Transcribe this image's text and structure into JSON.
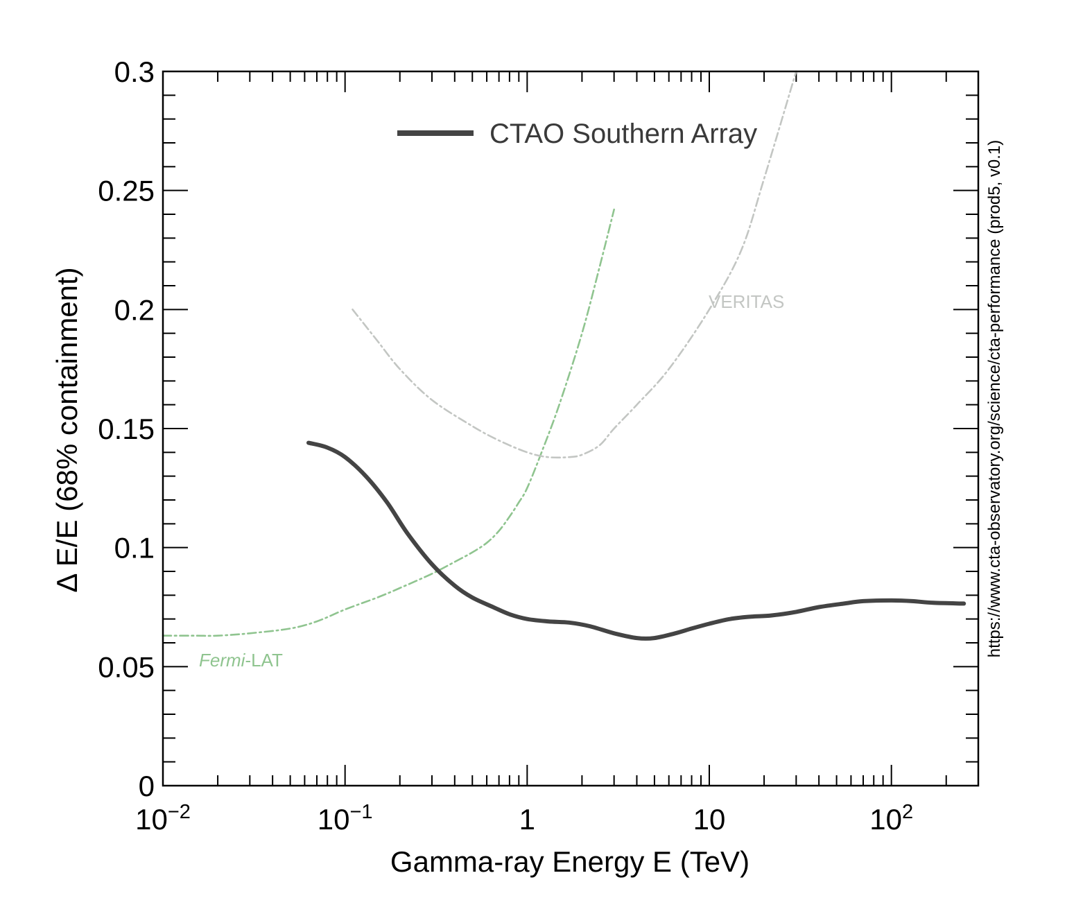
{
  "chart_data": {
    "type": "line",
    "xscale": "log",
    "xlim": [
      0.01,
      300
    ],
    "ylim": [
      0,
      0.3
    ],
    "xlabel": "Gamma-ray Energy E (TeV)",
    "ylabel": "Δ E/E (68% containment)",
    "x_ticks": [
      {
        "value": 0.01,
        "base": "10",
        "exp": "−2"
      },
      {
        "value": 0.1,
        "base": "10",
        "exp": "−1"
      },
      {
        "value": 1,
        "base": "1",
        "exp": ""
      },
      {
        "value": 10,
        "base": "10",
        "exp": ""
      },
      {
        "value": 100,
        "base": "10",
        "exp": "2"
      }
    ],
    "y_ticks": [
      {
        "value": 0,
        "label": "0"
      },
      {
        "value": 0.05,
        "label": "0.05"
      },
      {
        "value": 0.1,
        "label": "0.1"
      },
      {
        "value": 0.15,
        "label": "0.15"
      },
      {
        "value": 0.2,
        "label": "0.2"
      },
      {
        "value": 0.25,
        "label": "0.25"
      },
      {
        "value": 0.3,
        "label": "0.3"
      }
    ],
    "series": [
      {
        "name": "CTAO Southern Array",
        "color": "#444444",
        "style": "solid",
        "x": [
          0.063,
          0.08,
          0.1,
          0.13,
          0.17,
          0.22,
          0.3,
          0.4,
          0.5,
          0.65,
          0.8,
          1.0,
          1.3,
          1.7,
          2.2,
          3.0,
          4.0,
          5.0,
          6.5,
          8.0,
          10,
          13,
          17,
          22,
          30,
          40,
          55,
          70,
          100,
          130,
          170,
          250
        ],
        "y": [
          0.144,
          0.142,
          0.138,
          0.13,
          0.119,
          0.106,
          0.093,
          0.084,
          0.079,
          0.075,
          0.072,
          0.07,
          0.069,
          0.0685,
          0.067,
          0.064,
          0.062,
          0.062,
          0.064,
          0.066,
          0.068,
          0.07,
          0.071,
          0.0715,
          0.073,
          0.075,
          0.0765,
          0.0775,
          0.0778,
          0.0775,
          0.0768,
          0.0765
        ]
      },
      {
        "name": "Fermi-LAT",
        "color": "#8fc48f",
        "style": "dashdot",
        "x": [
          0.01,
          0.015,
          0.02,
          0.03,
          0.05,
          0.07,
          0.1,
          0.15,
          0.2,
          0.3,
          0.4,
          0.5,
          0.6,
          0.7,
          0.8,
          0.9,
          1.0,
          1.2,
          1.5,
          2.0,
          2.5,
          3.0
        ],
        "y": [
          0.063,
          0.063,
          0.063,
          0.064,
          0.066,
          0.069,
          0.074,
          0.079,
          0.083,
          0.089,
          0.094,
          0.098,
          0.102,
          0.107,
          0.113,
          0.119,
          0.125,
          0.14,
          0.16,
          0.19,
          0.218,
          0.242
        ]
      },
      {
        "name": "VERITAS",
        "color": "#c3c6c3",
        "style": "dashdot",
        "x": [
          0.11,
          0.15,
          0.2,
          0.3,
          0.5,
          0.7,
          1.0,
          1.3,
          1.7,
          2.0,
          2.5,
          3.0,
          4.0,
          6.0,
          10,
          15,
          20,
          30
        ],
        "y": [
          0.2,
          0.187,
          0.175,
          0.162,
          0.151,
          0.145,
          0.14,
          0.138,
          0.138,
          0.139,
          0.143,
          0.15,
          0.16,
          0.175,
          0.2,
          0.225,
          0.255,
          0.3
        ]
      }
    ],
    "legend": {
      "position": "top-center",
      "entries": [
        "CTAO Southern Array"
      ]
    },
    "annotations": {
      "veritas": "VERITAS",
      "fermi_italic": "Fermi",
      "fermi_suffix": "-LAT"
    },
    "side_text": "https://www.cta-observatory.org/science/cta-performance (prod5, v0.1)"
  }
}
